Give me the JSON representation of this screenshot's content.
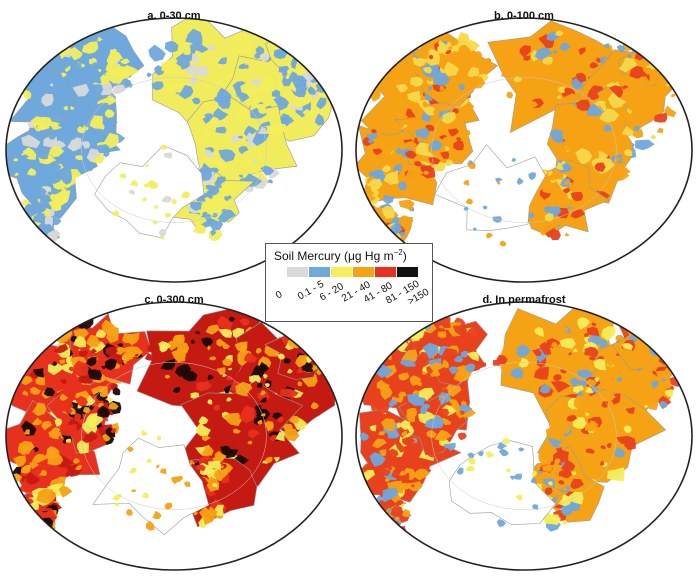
{
  "panels": [
    {
      "title": "a. 0-30 cm",
      "palette": [
        "#6fa8dc",
        "#6fa8dc",
        "#6fa8dc",
        "#f3ee5a",
        "#f3ee5a",
        "#d9d9d9"
      ],
      "land": "#6fa8dc",
      "land2": "#f1ec5c"
    },
    {
      "title": "b. 0-100 cm",
      "palette": [
        "#f5a214",
        "#f5a214",
        "#f5d94a",
        "#6fa8dc",
        "#e8411e",
        "#f5a214"
      ],
      "land": "#f5a214",
      "land2": "#f5a214"
    },
    {
      "title": "c. 0-300 cm",
      "palette": [
        "#e8301e",
        "#c51a12",
        "#f5a214",
        "#f5a214",
        "#1a0a05",
        "#f3ee5a"
      ],
      "land": "#e8301e",
      "land2": "#c51a12"
    },
    {
      "title": "d. In permafrost",
      "palette": [
        "#e8411e",
        "#f5a214",
        "#f5a214",
        "#f3ee5a",
        "#e8411e",
        "#6fa8dc"
      ],
      "land": "#e8411e",
      "land2": "#f5a214"
    }
  ],
  "legend": {
    "title": "Soil Mercury (μg Hg m",
    "title_unit_sup": "−2",
    "title_end": ")",
    "classes": [
      {
        "label": "0",
        "color": "#ffffff"
      },
      {
        "label": "0.1 - 5",
        "color": "#d9d9d9"
      },
      {
        "label": "6 - 20",
        "color": "#6fa8dc"
      },
      {
        "label": "21 - 40",
        "color": "#f3ee5a"
      },
      {
        "label": "41 - 80",
        "color": "#f5a214"
      },
      {
        "label": "81 - 150",
        "color": "#e8301e"
      },
      {
        "label": ">150",
        "color": "#111111"
      }
    ]
  }
}
